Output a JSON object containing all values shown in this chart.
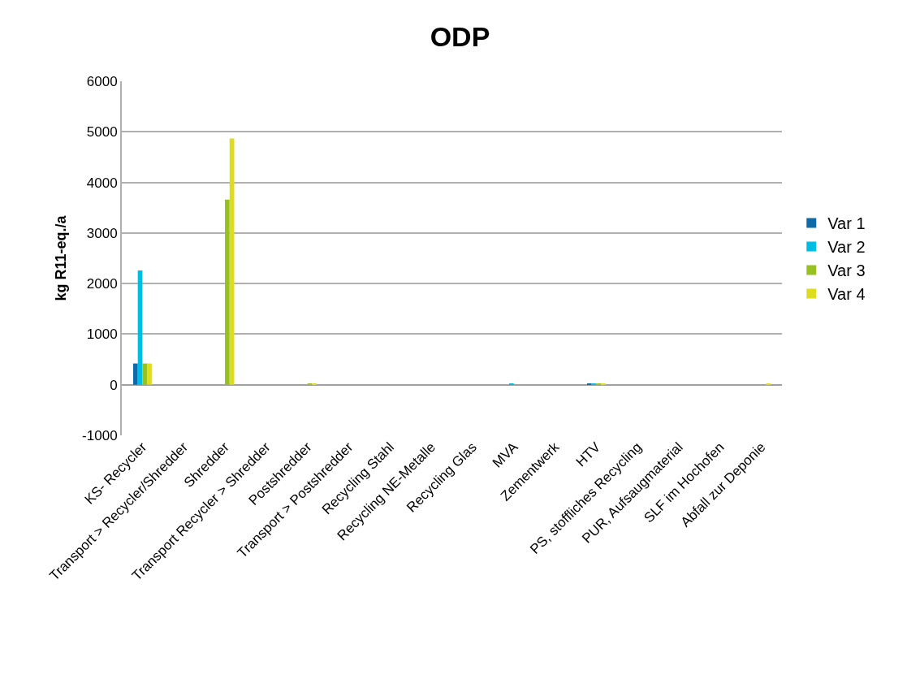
{
  "chart_data": {
    "type": "bar",
    "title": "ODP",
    "ylabel": "kg R11-eq./a",
    "categories": [
      "KS- Recycler",
      "Transport > Recycler/Shredder",
      "Shredder",
      "Transport Recycler > Shredder",
      "Postshredder",
      "Transport > Postshredder",
      "Recycling Stahl",
      "Recycling NE-Metalle",
      "Recycling Glas",
      "MVA",
      "Zementwerk",
      "HTV",
      "PS, stoffliches Recycling",
      "PUR, Aufsaugmaterial",
      "SLF im Hochofen",
      "Abfall zur Deponie"
    ],
    "series": [
      {
        "name": "Var 1",
        "color": "#0e6aa8",
        "values": [
          420,
          0,
          0,
          0,
          0,
          0,
          0,
          0,
          0,
          0,
          0,
          20,
          0,
          0,
          0,
          0
        ]
      },
      {
        "name": "Var 2",
        "color": "#00bde3",
        "values": [
          2260,
          0,
          0,
          0,
          0,
          0,
          0,
          0,
          0,
          20,
          0,
          20,
          0,
          0,
          0,
          0
        ]
      },
      {
        "name": "Var 3",
        "color": "#96c11f",
        "values": [
          420,
          0,
          3660,
          0,
          20,
          0,
          0,
          0,
          0,
          0,
          0,
          20,
          0,
          0,
          0,
          0
        ]
      },
      {
        "name": "Var 4",
        "color": "#dedc1e",
        "values": [
          420,
          0,
          4870,
          0,
          20,
          0,
          0,
          0,
          0,
          0,
          0,
          20,
          0,
          0,
          0,
          20
        ]
      }
    ],
    "ylim": [
      -1000,
      6000
    ],
    "yticks": [
      -1000,
      0,
      1000,
      2000,
      3000,
      4000,
      5000,
      6000
    ],
    "grid": "y",
    "legend": "right"
  }
}
